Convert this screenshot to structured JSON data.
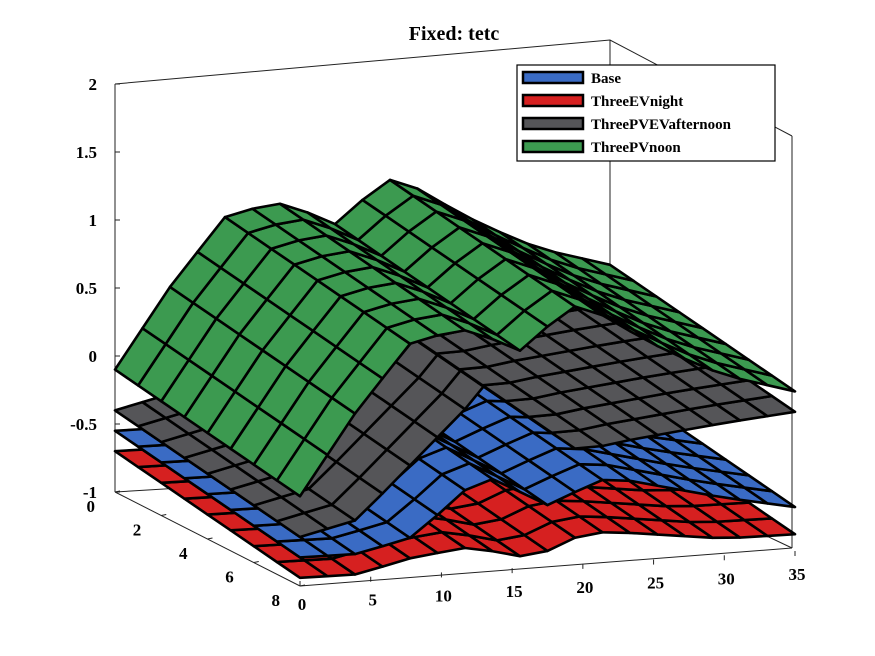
{
  "chart_data": {
    "type": "surface",
    "title": "Fixed: tetc",
    "xlabel": "",
    "ylabel": "",
    "zlabel": "",
    "x_ticks": [
      "0",
      "5",
      "10",
      "15",
      "20",
      "25",
      "30",
      "35"
    ],
    "y_ticks": [
      "0",
      "2",
      "4",
      "6",
      "8"
    ],
    "z_ticks": [
      "2",
      "1.5",
      "1",
      "0.5",
      "0",
      "-0.5",
      "-1"
    ],
    "xlim": [
      0,
      35
    ],
    "ylim": [
      0,
      8
    ],
    "zlim": [
      -1,
      2
    ],
    "legend_position": "top-right",
    "series": [
      {
        "name": "Base",
        "color": "#3a6bc4",
        "profile_x": [
          0,
          4,
          8,
          12,
          14,
          16,
          18,
          20,
          22,
          26,
          30,
          35
        ],
        "profile_z": [
          -0.55,
          -0.55,
          -0.45,
          -0.1,
          -0.05,
          -0.2,
          -0.3,
          -0.15,
          -0.1,
          -0.2,
          -0.3,
          -0.4
        ]
      },
      {
        "name": "ThreeEVnight",
        "color": "#d62020",
        "profile_x": [
          0,
          4,
          8,
          12,
          14,
          16,
          18,
          20,
          22,
          26,
          30,
          35
        ],
        "profile_z": [
          -0.7,
          -0.7,
          -0.6,
          -0.55,
          -0.6,
          -0.65,
          -0.6,
          -0.5,
          -0.5,
          -0.55,
          -0.6,
          -0.6
        ]
      },
      {
        "name": "ThreePVEVafternoon",
        "color": "#555558",
        "profile_x": [
          0,
          4,
          8,
          12,
          14,
          16,
          18,
          20,
          22,
          26,
          30,
          35
        ],
        "profile_z": [
          -0.4,
          -0.3,
          0.1,
          0.5,
          0.75,
          0.5,
          0.2,
          0.1,
          0.15,
          0.2,
          0.25,
          0.3
        ]
      },
      {
        "name": "ThreePVnoon",
        "color": "#3c9a50",
        "profile_x": [
          0,
          4,
          8,
          12,
          14,
          16,
          18,
          20,
          22,
          26,
          30,
          35
        ],
        "profile_z": [
          -0.1,
          0.5,
          1.0,
          1.05,
          0.95,
          0.85,
          1.1,
          1.2,
          1.05,
          0.8,
          0.6,
          0.45
        ]
      }
    ]
  }
}
